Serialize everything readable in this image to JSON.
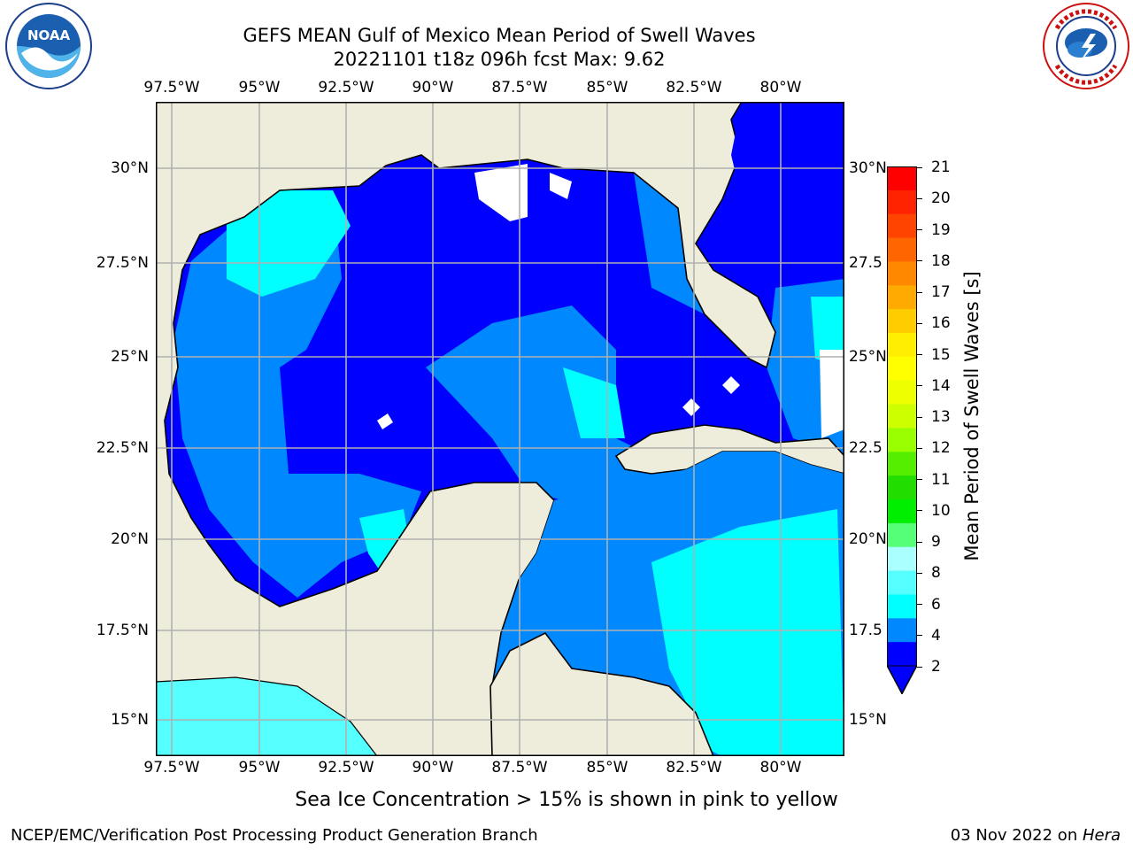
{
  "header": {
    "title_line1": "GEFS MEAN Gulf of Mexico Mean Period of Swell Waves",
    "title_line2": "20221101 t18z 096h fcst   Max: 9.62"
  },
  "logos": {
    "left": {
      "icon": "noaa-logo-icon",
      "text": "NOAA",
      "ring": "NATIONAL OCEANIC AND ATMOSPHERIC ADMINISTRATION · U.S. DEPARTMENT OF COMMERCE"
    },
    "right": {
      "icon": "nws-logo-icon",
      "ring": "NATIONAL WEATHER SERVICE"
    }
  },
  "map": {
    "lon_ticks": [
      "97.5°W",
      "95°W",
      "92.5°W",
      "90°W",
      "87.5°W",
      "85°W",
      "82.5°W",
      "80°W"
    ],
    "lat_ticks": [
      "30°N",
      "27.5°N",
      "25°N",
      "22.5°N",
      "20°N",
      "17.5°N",
      "15°N"
    ],
    "lat_ticks_right": [
      "30°N",
      "27.5",
      "25°N",
      "22.5",
      "20°N",
      "17.5",
      "15°N"
    ],
    "colors": {
      "land": "#eeeddb",
      "grid": "#b0b0b0",
      "coast": "#000000"
    }
  },
  "colorbar": {
    "label": "Mean Period of Swell Waves [s]",
    "ticks": [
      "21",
      "20",
      "19",
      "18",
      "17",
      "16",
      "15",
      "14",
      "13",
      "12",
      "11",
      "10",
      "9",
      "8",
      "6",
      "4",
      "2"
    ],
    "colors_top_to_bottom": [
      "#ff0000",
      "#ff2200",
      "#ff4400",
      "#ff6600",
      "#ff8800",
      "#ffaa00",
      "#ffcc00",
      "#ffee00",
      "#ffff00",
      "#eeff00",
      "#ccff00",
      "#99ff00",
      "#55ee00",
      "#22dd00",
      "#00ee00",
      "#55ff77",
      "#aaffff",
      "#55ffff",
      "#00ffff",
      "#0088ff",
      "#0000ff"
    ]
  },
  "footer": {
    "note": "Sea Ice Concentration > 15% is shown in pink to yellow",
    "left": "NCEP/EMC/Verification Post Processing Product Generation Branch",
    "right_date": "03 Nov 2022 on ",
    "right_host": "Hera"
  }
}
